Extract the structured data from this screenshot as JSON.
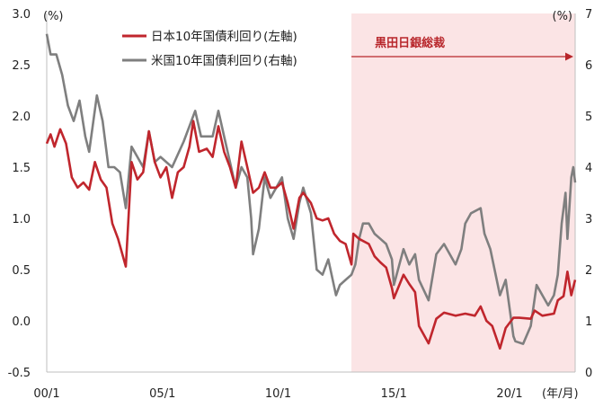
{
  "chart_data": {
    "type": "line",
    "title": "",
    "xlabel": "",
    "x_unit_label": "(年/月)",
    "ylabel_left_unit": "(%)",
    "ylabel_right_unit": "(%)",
    "ylim_left": [
      -0.5,
      3.0
    ],
    "ylim_right": [
      0,
      7
    ],
    "yticks_left": [
      "3.0",
      "2.5",
      "2.0",
      "1.5",
      "1.0",
      "0.5",
      "0.0",
      "-0.5"
    ],
    "yticks_right": [
      "7",
      "6",
      "5",
      "4",
      "3",
      "2",
      "1",
      "0"
    ],
    "xticks": [
      "00/1",
      "05/1",
      "10/1",
      "15/1",
      "20/1"
    ],
    "xlim": [
      "2000-01",
      "2022-11"
    ],
    "grid": false,
    "legend_position": "top-left",
    "colors": {
      "japan": "#c0262d",
      "us": "#7f7f7f",
      "shade": "#fbe4e5",
      "annotation": "#b8262b"
    },
    "annotation": {
      "label": "黒田日銀総裁",
      "start": "2013-03",
      "end": "2022-11"
    },
    "series": [
      {
        "name": "日本10年国債利回り(左軸)",
        "axis": "left",
        "points": [
          [
            "2000-01",
            1.73
          ],
          [
            "2000-03",
            1.82
          ],
          [
            "2000-05",
            1.7
          ],
          [
            "2000-08",
            1.87
          ],
          [
            "2000-11",
            1.73
          ],
          [
            "2001-02",
            1.4
          ],
          [
            "2001-05",
            1.3
          ],
          [
            "2001-08",
            1.35
          ],
          [
            "2001-11",
            1.28
          ],
          [
            "2002-02",
            1.55
          ],
          [
            "2002-05",
            1.38
          ],
          [
            "2002-08",
            1.3
          ],
          [
            "2002-11",
            0.95
          ],
          [
            "2003-02",
            0.8
          ],
          [
            "2003-06",
            0.53
          ],
          [
            "2003-09",
            1.55
          ],
          [
            "2003-12",
            1.38
          ],
          [
            "2004-03",
            1.45
          ],
          [
            "2004-06",
            1.85
          ],
          [
            "2004-09",
            1.55
          ],
          [
            "2004-12",
            1.4
          ],
          [
            "2005-03",
            1.5
          ],
          [
            "2005-06",
            1.2
          ],
          [
            "2005-09",
            1.45
          ],
          [
            "2005-12",
            1.5
          ],
          [
            "2006-03",
            1.7
          ],
          [
            "2006-05",
            1.95
          ],
          [
            "2006-08",
            1.65
          ],
          [
            "2006-12",
            1.68
          ],
          [
            "2007-03",
            1.6
          ],
          [
            "2007-06",
            1.9
          ],
          [
            "2007-09",
            1.65
          ],
          [
            "2007-12",
            1.5
          ],
          [
            "2008-03",
            1.3
          ],
          [
            "2008-06",
            1.75
          ],
          [
            "2008-09",
            1.5
          ],
          [
            "2008-12",
            1.25
          ],
          [
            "2009-03",
            1.3
          ],
          [
            "2009-06",
            1.45
          ],
          [
            "2009-09",
            1.3
          ],
          [
            "2009-12",
            1.3
          ],
          [
            "2010-03",
            1.35
          ],
          [
            "2010-06",
            1.15
          ],
          [
            "2010-09",
            0.9
          ],
          [
            "2010-12",
            1.2
          ],
          [
            "2011-02",
            1.25
          ],
          [
            "2011-06",
            1.15
          ],
          [
            "2011-09",
            1.0
          ],
          [
            "2011-12",
            0.98
          ],
          [
            "2012-03",
            1.0
          ],
          [
            "2012-06",
            0.85
          ],
          [
            "2012-09",
            0.78
          ],
          [
            "2012-12",
            0.75
          ],
          [
            "2013-03",
            0.55
          ],
          [
            "2013-04",
            0.85
          ],
          [
            "2013-07",
            0.8
          ],
          [
            "2013-12",
            0.75
          ],
          [
            "2014-03",
            0.63
          ],
          [
            "2014-06",
            0.57
          ],
          [
            "2014-09",
            0.52
          ],
          [
            "2014-12",
            0.32
          ],
          [
            "2015-01",
            0.22
          ],
          [
            "2015-06",
            0.45
          ],
          [
            "2015-09",
            0.36
          ],
          [
            "2015-12",
            0.28
          ],
          [
            "2016-02",
            -0.05
          ],
          [
            "2016-07",
            -0.22
          ],
          [
            "2016-11",
            0.02
          ],
          [
            "2017-03",
            0.08
          ],
          [
            "2017-09",
            0.05
          ],
          [
            "2018-02",
            0.07
          ],
          [
            "2018-07",
            0.05
          ],
          [
            "2018-10",
            0.14
          ],
          [
            "2019-01",
            0.0
          ],
          [
            "2019-04",
            -0.05
          ],
          [
            "2019-08",
            -0.27
          ],
          [
            "2019-11",
            -0.07
          ],
          [
            "2020-03",
            0.03
          ],
          [
            "2020-06",
            0.03
          ],
          [
            "2020-12",
            0.02
          ],
          [
            "2021-02",
            0.1
          ],
          [
            "2021-06",
            0.05
          ],
          [
            "2021-12",
            0.07
          ],
          [
            "2022-02",
            0.2
          ],
          [
            "2022-05",
            0.24
          ],
          [
            "2022-07",
            0.48
          ],
          [
            "2022-09",
            0.25
          ],
          [
            "2022-11",
            0.4
          ]
        ]
      },
      {
        "name": "米国10年国債利回り(右軸)",
        "axis": "right",
        "points": [
          [
            "2000-01",
            6.6
          ],
          [
            "2000-03",
            6.2
          ],
          [
            "2000-06",
            6.2
          ],
          [
            "2000-09",
            5.8
          ],
          [
            "2000-12",
            5.2
          ],
          [
            "2001-03",
            4.9
          ],
          [
            "2001-06",
            5.3
          ],
          [
            "2001-09",
            4.6
          ],
          [
            "2001-11",
            4.3
          ],
          [
            "2002-03",
            5.4
          ],
          [
            "2002-06",
            4.9
          ],
          [
            "2002-09",
            4.0
          ],
          [
            "2002-12",
            4.0
          ],
          [
            "2003-03",
            3.9
          ],
          [
            "2003-06",
            3.2
          ],
          [
            "2003-09",
            4.4
          ],
          [
            "2003-12",
            4.2
          ],
          [
            "2004-03",
            4.0
          ],
          [
            "2004-06",
            4.7
          ],
          [
            "2004-09",
            4.1
          ],
          [
            "2004-12",
            4.2
          ],
          [
            "2005-06",
            4.0
          ],
          [
            "2005-12",
            4.5
          ],
          [
            "2006-03",
            4.8
          ],
          [
            "2006-06",
            5.1
          ],
          [
            "2006-09",
            4.6
          ],
          [
            "2006-12",
            4.6
          ],
          [
            "2007-03",
            4.6
          ],
          [
            "2007-06",
            5.1
          ],
          [
            "2007-09",
            4.6
          ],
          [
            "2007-12",
            4.1
          ],
          [
            "2008-03",
            3.6
          ],
          [
            "2008-06",
            4.0
          ],
          [
            "2008-09",
            3.8
          ],
          [
            "2008-11",
            3.0
          ],
          [
            "2008-12",
            2.3
          ],
          [
            "2009-03",
            2.8
          ],
          [
            "2009-06",
            3.8
          ],
          [
            "2009-09",
            3.4
          ],
          [
            "2009-12",
            3.6
          ],
          [
            "2010-03",
            3.8
          ],
          [
            "2010-06",
            3.0
          ],
          [
            "2010-09",
            2.6
          ],
          [
            "2010-12",
            3.3
          ],
          [
            "2011-02",
            3.6
          ],
          [
            "2011-06",
            3.1
          ],
          [
            "2011-09",
            2.0
          ],
          [
            "2011-12",
            1.9
          ],
          [
            "2012-03",
            2.2
          ],
          [
            "2012-07",
            1.5
          ],
          [
            "2012-09",
            1.7
          ],
          [
            "2012-12",
            1.8
          ],
          [
            "2013-03",
            1.9
          ],
          [
            "2013-05",
            2.1
          ],
          [
            "2013-07",
            2.6
          ],
          [
            "2013-09",
            2.9
          ],
          [
            "2013-12",
            2.9
          ],
          [
            "2014-03",
            2.7
          ],
          [
            "2014-06",
            2.6
          ],
          [
            "2014-09",
            2.5
          ],
          [
            "2014-12",
            2.2
          ],
          [
            "2015-01",
            1.7
          ],
          [
            "2015-06",
            2.4
          ],
          [
            "2015-09",
            2.1
          ],
          [
            "2015-12",
            2.3
          ],
          [
            "2016-02",
            1.8
          ],
          [
            "2016-07",
            1.4
          ],
          [
            "2016-11",
            2.3
          ],
          [
            "2017-03",
            2.5
          ],
          [
            "2017-09",
            2.1
          ],
          [
            "2017-12",
            2.4
          ],
          [
            "2018-02",
            2.9
          ],
          [
            "2018-05",
            3.1
          ],
          [
            "2018-10",
            3.2
          ],
          [
            "2018-12",
            2.7
          ],
          [
            "2019-03",
            2.4
          ],
          [
            "2019-08",
            1.5
          ],
          [
            "2019-11",
            1.8
          ],
          [
            "2020-03",
            0.7
          ],
          [
            "2020-04",
            0.6
          ],
          [
            "2020-08",
            0.55
          ],
          [
            "2020-12",
            0.9
          ],
          [
            "2021-03",
            1.7
          ],
          [
            "2021-06",
            1.5
          ],
          [
            "2021-09",
            1.3
          ],
          [
            "2021-12",
            1.5
          ],
          [
            "2022-02",
            1.9
          ],
          [
            "2022-04",
            2.9
          ],
          [
            "2022-06",
            3.5
          ],
          [
            "2022-07",
            2.6
          ],
          [
            "2022-09",
            3.8
          ],
          [
            "2022-10",
            4.0
          ],
          [
            "2022-11",
            3.7
          ]
        ]
      }
    ]
  }
}
